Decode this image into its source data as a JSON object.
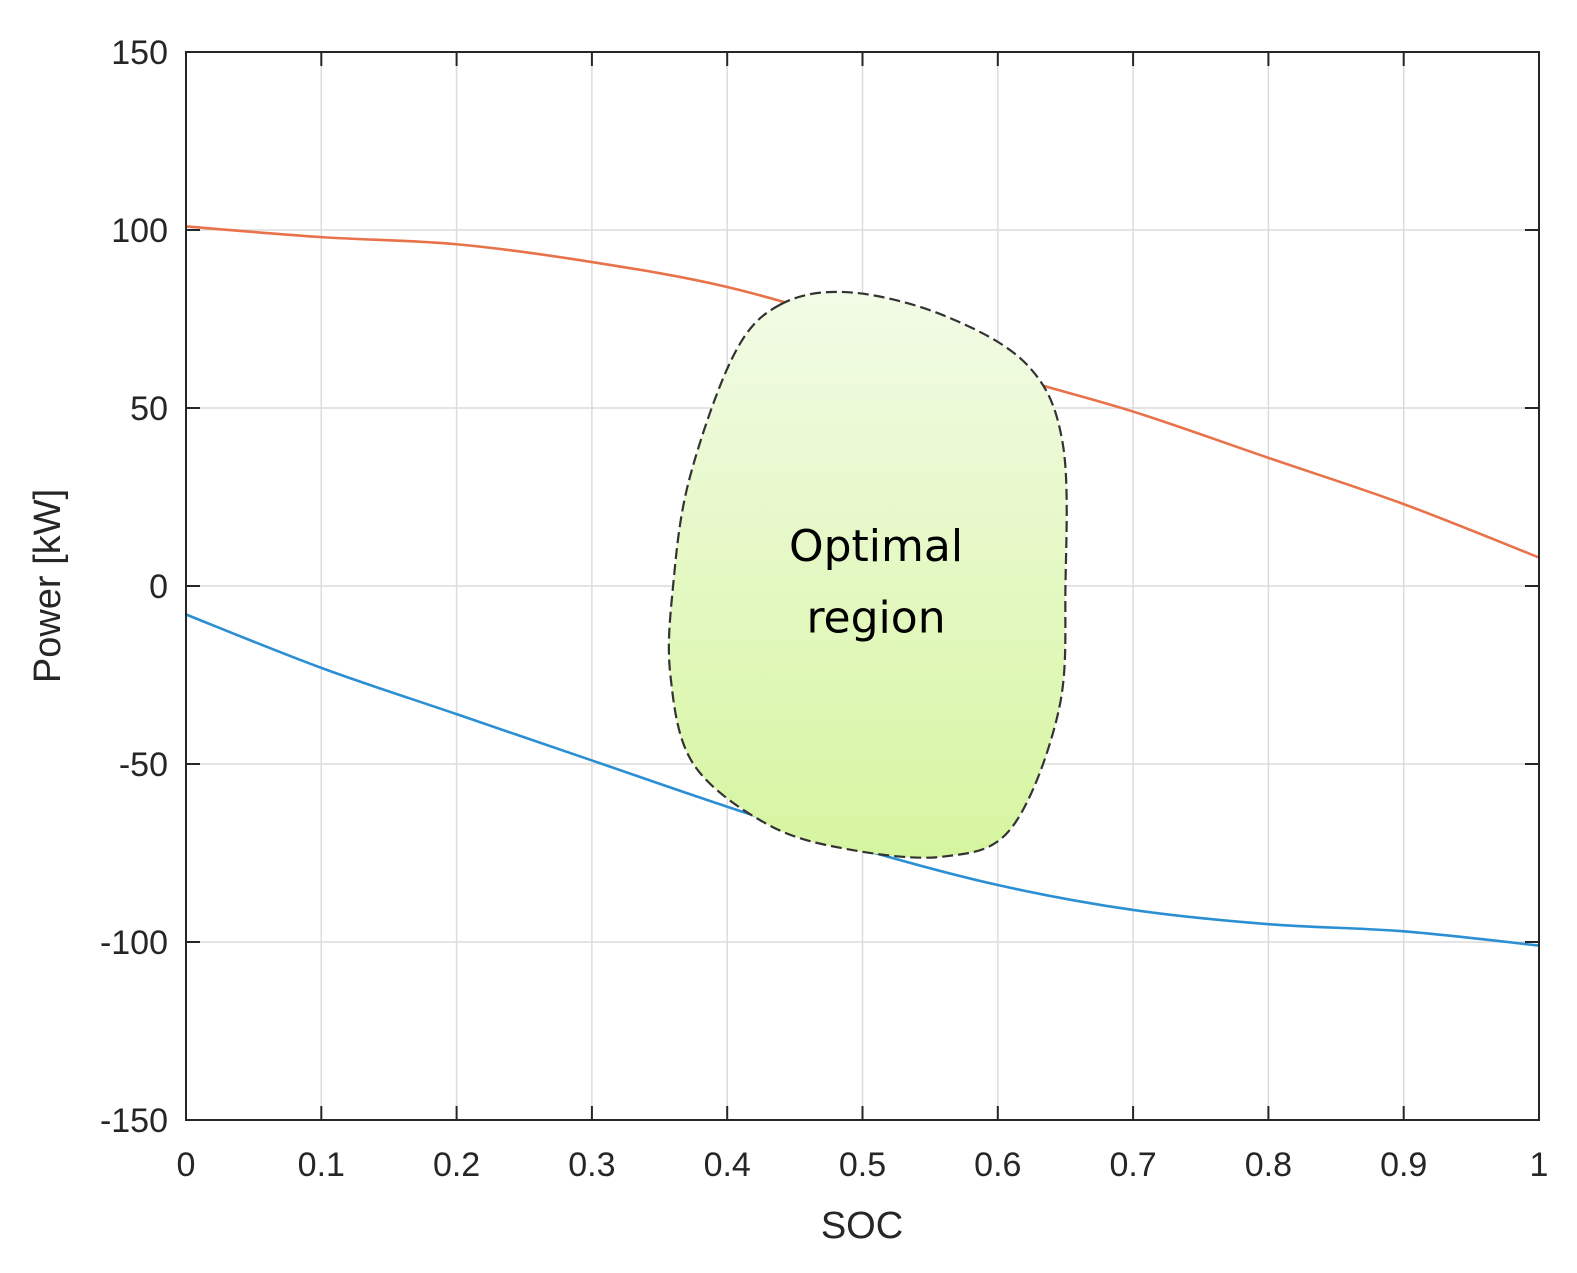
{
  "chart_data": {
    "type": "line",
    "xlabel": "SOC",
    "ylabel": "Power [kW]",
    "xlim": [
      0,
      1
    ],
    "ylim": [
      -150,
      150
    ],
    "xticks": [
      "0",
      "0.1",
      "0.2",
      "0.3",
      "0.4",
      "0.5",
      "0.6",
      "0.7",
      "0.8",
      "0.9",
      "1"
    ],
    "yticks": [
      "-150",
      "-100",
      "-50",
      "0",
      "50",
      "100",
      "150"
    ],
    "grid": true,
    "series": [
      {
        "color": "#e8724a",
        "x": [
          0,
          0.1,
          0.2,
          0.3,
          0.4,
          0.5,
          0.6,
          0.7,
          0.8,
          0.9,
          1.0
        ],
        "y": [
          101,
          98,
          96,
          91,
          84,
          73,
          60,
          49,
          36,
          23,
          8
        ]
      },
      {
        "color": "#2b8fd4",
        "x": [
          0,
          0.1,
          0.2,
          0.3,
          0.4,
          0.5,
          0.6,
          0.7,
          0.8,
          0.9,
          1.0
        ],
        "y": [
          -8,
          -23,
          -36,
          -49,
          -62,
          -74,
          -84,
          -91,
          -95,
          -97,
          -101
        ]
      }
    ],
    "annotation": {
      "lines": [
        "Optimal",
        "region"
      ],
      "fill_top": "#f2fbe6",
      "fill_bottom": "#d6f5a0",
      "border": "#333333",
      "outline": [
        [
          0.439,
          79
        ],
        [
          0.49,
          82.5
        ],
        [
          0.56,
          76
        ],
        [
          0.622,
          62
        ],
        [
          0.648,
          40
        ],
        [
          0.65,
          0
        ],
        [
          0.645,
          -35
        ],
        [
          0.61,
          -68
        ],
        [
          0.56,
          -76
        ],
        [
          0.49,
          -74
        ],
        [
          0.43,
          -67
        ],
        [
          0.375,
          -50
        ],
        [
          0.358,
          -25
        ],
        [
          0.36,
          0
        ],
        [
          0.372,
          30
        ],
        [
          0.405,
          65
        ]
      ]
    }
  }
}
